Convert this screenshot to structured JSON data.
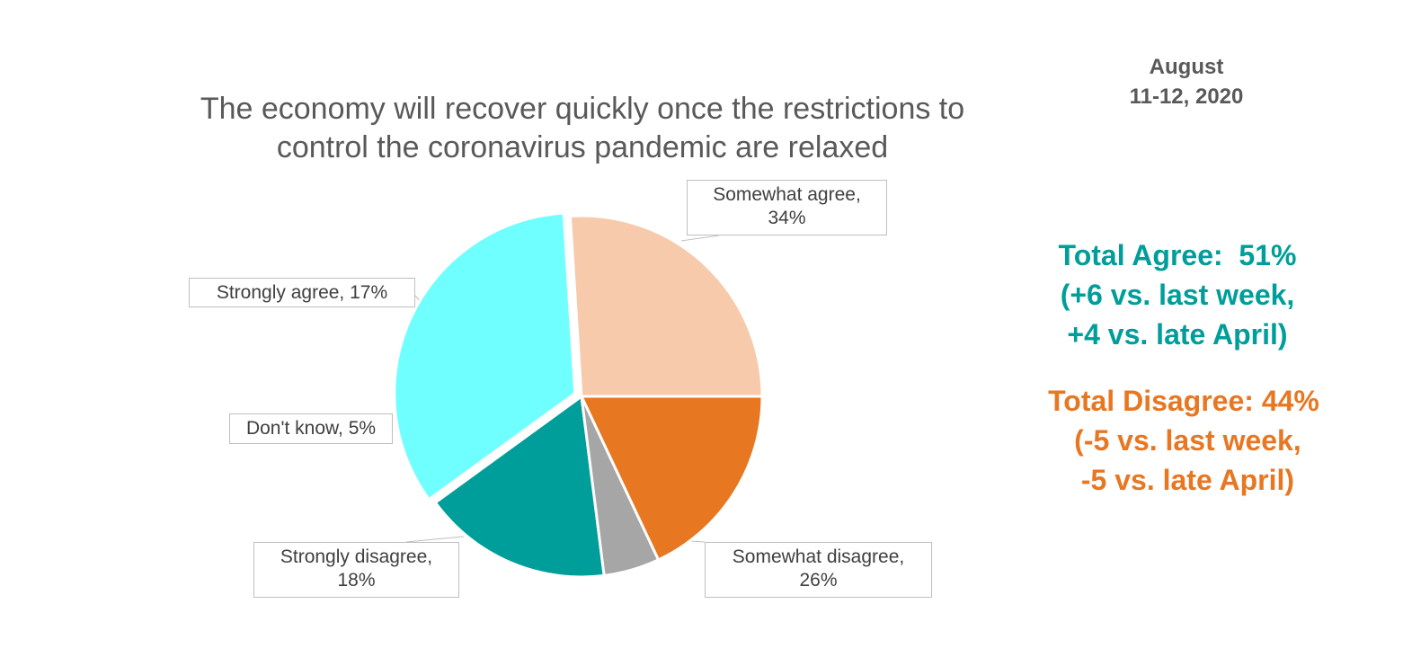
{
  "date": {
    "line1": "August",
    "line2": "11-12, 2020"
  },
  "summary": {
    "agree": {
      "line1": "Total Agree:  51%",
      "line2": "(+6 vs. last week,",
      "line3": "+4 vs. late April)",
      "color": "#009E9A"
    },
    "disagree": {
      "line1": "Total Disagree: 44%",
      "line2": " (-5 vs. last week,",
      "line3": " -5 vs. late April)",
      "color": "#E87722"
    }
  },
  "chart_data": {
    "type": "pie",
    "title": "The economy will recover quickly once the restrictions to control the coronavirus pandemic are relaxed",
    "title_lines": [
      "The economy will recover quickly once the restrictions to",
      "control the coronavirus pandemic are relaxed"
    ],
    "start_angle_deg": 0,
    "direction": "counterclockwise",
    "slices": [
      {
        "key": "somewhat-disagree",
        "label": "Somewhat disagree,",
        "value_label": "26%",
        "value": 26,
        "color": "#F7CAAC"
      },
      {
        "key": "somewhat-agree",
        "label": "Somewhat agree,",
        "value_label": "34%",
        "value": 34,
        "color": "#6FFFFF"
      },
      {
        "key": "strongly-agree",
        "label": "Strongly agree, 17%",
        "value_label": "",
        "value": 17,
        "color": "#009E9A"
      },
      {
        "key": "dont-know",
        "label": "Don't know, 5%",
        "value_label": "",
        "value": 5,
        "color": "#A6A6A6"
      },
      {
        "key": "strongly-disagree",
        "label": "Strongly disagree,",
        "value_label": "18%",
        "value": 18,
        "color": "#E87722"
      }
    ],
    "exploded_slice": "somewhat-agree",
    "legend": "none"
  }
}
